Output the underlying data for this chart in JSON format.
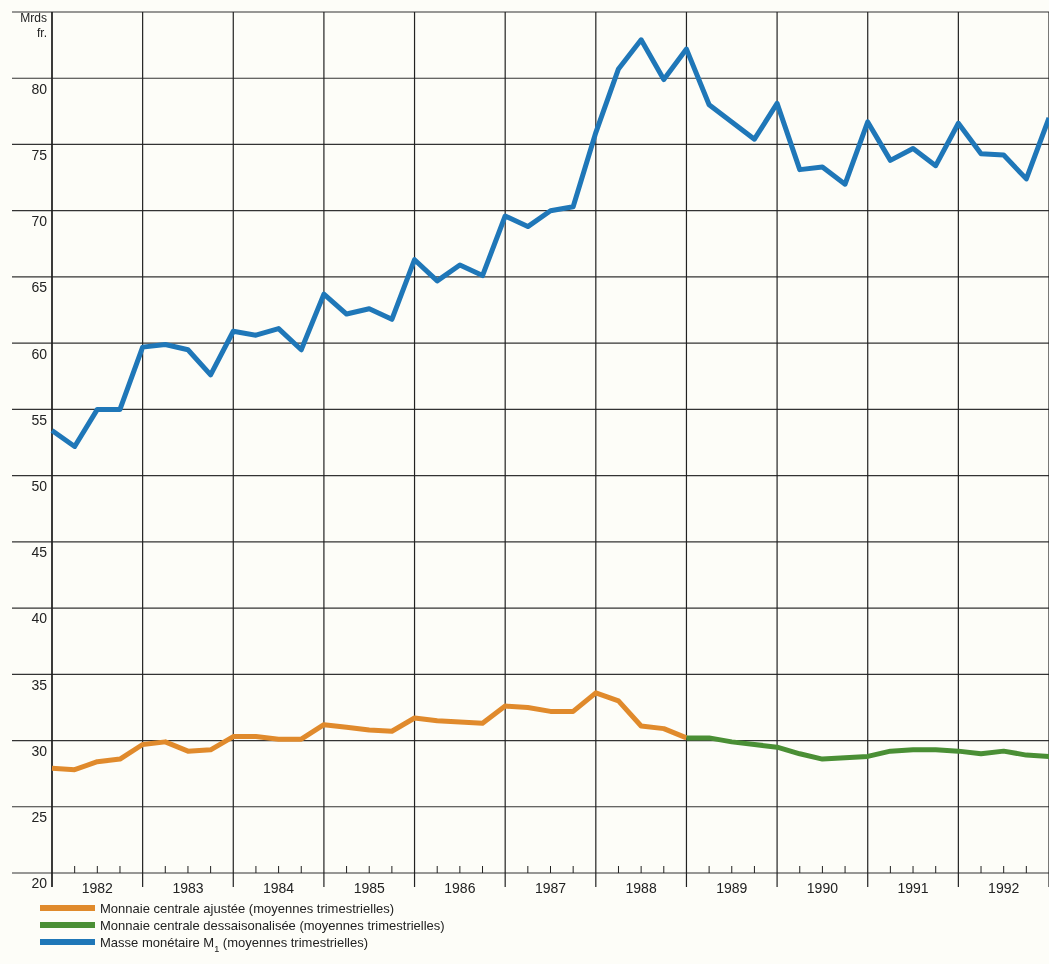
{
  "chart_data": {
    "type": "line",
    "ylabel": "Mrds fr.",
    "xlim": [
      1982,
      1993
    ],
    "ylim": [
      20,
      85
    ],
    "yticks": [
      20,
      25,
      30,
      35,
      40,
      45,
      50,
      55,
      60,
      65,
      70,
      75,
      80
    ],
    "xticks": [
      {
        "value": 1982,
        "label": null
      },
      {
        "value": 1982.25,
        "label": null
      },
      {
        "value": 1982.5,
        "label": "1982"
      },
      {
        "value": 1982.75,
        "label": null
      },
      {
        "value": 1983,
        "label": null
      },
      {
        "value": 1983.25,
        "label": null
      },
      {
        "value": 1983.5,
        "label": "1983"
      },
      {
        "value": 1983.75,
        "label": null
      },
      {
        "value": 1984,
        "label": null
      },
      {
        "value": 1984.25,
        "label": null
      },
      {
        "value": 1984.5,
        "label": "1984"
      },
      {
        "value": 1984.75,
        "label": null
      },
      {
        "value": 1985,
        "label": null
      },
      {
        "value": 1985.25,
        "label": null
      },
      {
        "value": 1985.5,
        "label": "1985"
      },
      {
        "value": 1985.75,
        "label": null
      },
      {
        "value": 1986,
        "label": null
      },
      {
        "value": 1986.25,
        "label": null
      },
      {
        "value": 1986.5,
        "label": "1986"
      },
      {
        "value": 1986.75,
        "label": null
      },
      {
        "value": 1987,
        "label": null
      },
      {
        "value": 1987.25,
        "label": null
      },
      {
        "value": 1987.5,
        "label": "1987"
      },
      {
        "value": 1987.75,
        "label": null
      },
      {
        "value": 1988,
        "label": null
      },
      {
        "value": 1988.25,
        "label": null
      },
      {
        "value": 1988.5,
        "label": "1988"
      },
      {
        "value": 1988.75,
        "label": null
      },
      {
        "value": 1989,
        "label": null
      },
      {
        "value": 1989.25,
        "label": null
      },
      {
        "value": 1989.5,
        "label": "1989"
      },
      {
        "value": 1989.75,
        "label": null
      },
      {
        "value": 1990,
        "label": null
      },
      {
        "value": 1990.25,
        "label": null
      },
      {
        "value": 1990.5,
        "label": "1990"
      },
      {
        "value": 1990.75,
        "label": null
      },
      {
        "value": 1991,
        "label": null
      },
      {
        "value": 1991.25,
        "label": null
      },
      {
        "value": 1991.5,
        "label": "1991"
      },
      {
        "value": 1991.75,
        "label": null
      },
      {
        "value": 1992,
        "label": null
      },
      {
        "value": 1992.25,
        "label": null
      },
      {
        "value": 1992.5,
        "label": "1992"
      },
      {
        "value": 1992.75,
        "label": null
      },
      {
        "value": 1993,
        "label": null
      }
    ],
    "grid": true,
    "legend": "bottom left",
    "line_style": "solid",
    "marker": "none",
    "series": [
      {
        "name": "Monnaie centrale ajustée (moyennes trimestrielles)",
        "color": "#e08a2c",
        "x": [
          1982,
          1982.25,
          1982.5,
          1982.75,
          1983,
          1983.25,
          1983.5,
          1983.75,
          1984,
          1984.25,
          1984.5,
          1984.75,
          1985,
          1985.25,
          1985.5,
          1985.75,
          1986,
          1986.25,
          1986.5,
          1986.75,
          1987,
          1987.25,
          1987.5,
          1987.75,
          1988,
          1988.25,
          1988.5,
          1988.75,
          1989
        ],
        "values": [
          27.9,
          27.8,
          28.4,
          28.6,
          29.7,
          29.9,
          29.2,
          29.3,
          30.3,
          30.3,
          30.1,
          30.1,
          31.2,
          31.0,
          30.8,
          30.7,
          31.7,
          31.5,
          31.4,
          31.3,
          32.6,
          32.5,
          32.2,
          32.2,
          33.6,
          33.0,
          31.1,
          30.9,
          30.2
        ]
      },
      {
        "name": "Monnaie centrale dessaisonalisée (moyennes trimestrielles)",
        "color": "#4a8f35",
        "x": [
          1989,
          1989.25,
          1989.5,
          1989.75,
          1990,
          1990.25,
          1990.5,
          1990.75,
          1991,
          1991.25,
          1991.5,
          1991.75,
          1992,
          1992.25,
          1992.5,
          1992.75,
          1993
        ],
        "values": [
          30.2,
          30.2,
          29.9,
          29.7,
          29.5,
          29.0,
          28.6,
          28.7,
          28.8,
          29.2,
          29.3,
          29.3,
          29.2,
          29.0,
          29.2,
          28.9,
          28.8
        ]
      },
      {
        "name": "Masse monétaire M$_{1}$ (moyennes trimestrielles)",
        "color": "#1f77b8",
        "x": [
          1982,
          1982.25,
          1982.5,
          1982.75,
          1983,
          1983.25,
          1983.5,
          1983.75,
          1984,
          1984.25,
          1984.5,
          1984.75,
          1985,
          1985.25,
          1985.5,
          1985.75,
          1986,
          1986.25,
          1986.5,
          1986.75,
          1987,
          1987.25,
          1987.5,
          1987.75,
          1988,
          1988.25,
          1988.5,
          1988.75,
          1989,
          1989.25,
          1989.5,
          1989.75,
          1990,
          1990.25,
          1990.5,
          1990.75,
          1991,
          1991.25,
          1991.5,
          1991.75,
          1992,
          1992.25,
          1992.5,
          1992.75,
          1993
        ],
        "values": [
          53.4,
          52.2,
          55.0,
          55.0,
          59.7,
          59.9,
          59.5,
          57.6,
          60.9,
          60.6,
          61.1,
          59.5,
          63.7,
          62.2,
          62.6,
          61.8,
          66.3,
          64.7,
          65.9,
          65.1,
          69.6,
          68.8,
          70.0,
          70.3,
          75.9,
          80.7,
          82.9,
          79.9,
          82.2,
          78.0,
          76.7,
          75.4,
          78.1,
          73.1,
          73.3,
          72.0,
          76.7,
          73.8,
          74.7,
          73.4,
          76.6,
          74.3,
          74.2,
          72.4,
          77.0
        ]
      }
    ]
  }
}
